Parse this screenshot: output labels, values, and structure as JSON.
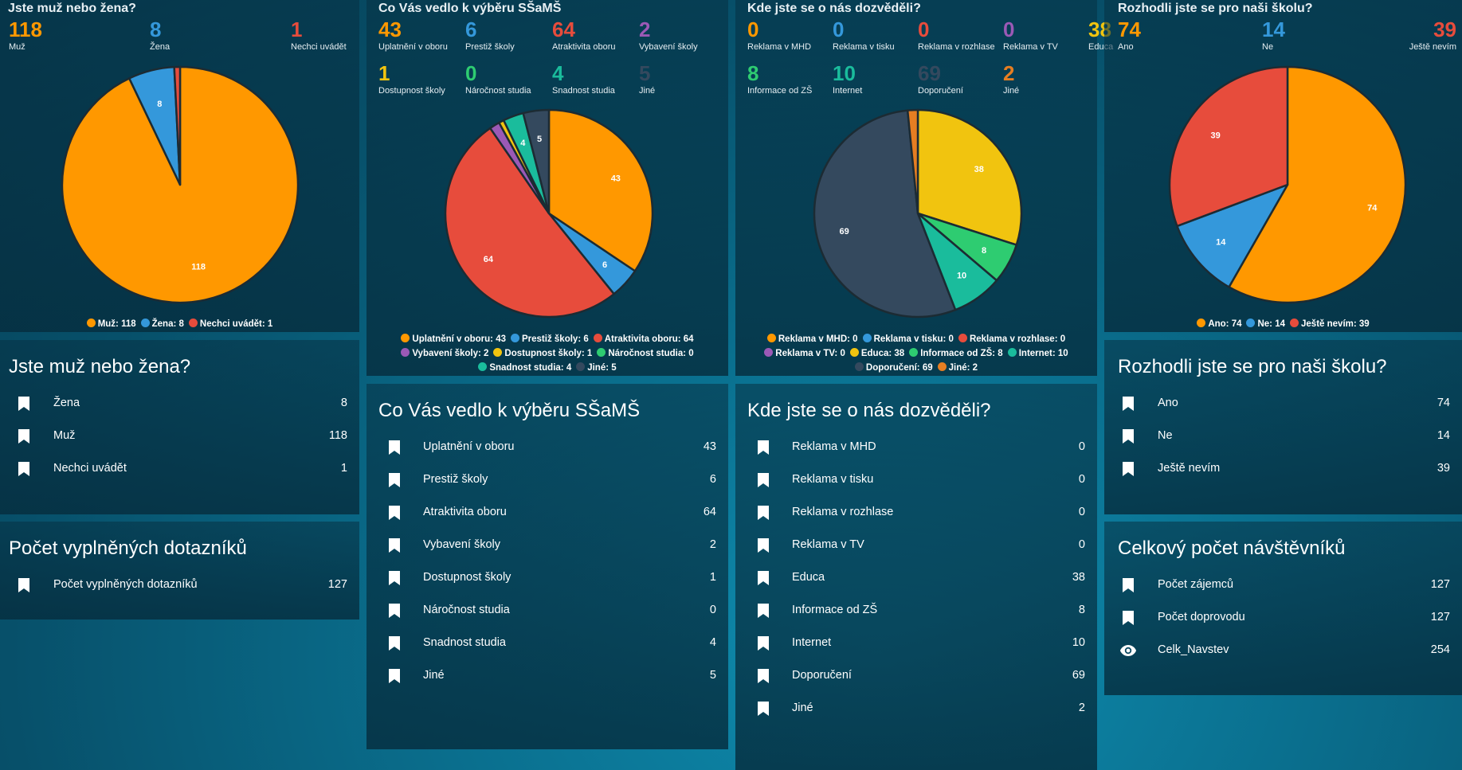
{
  "colors": {
    "orange": "#ff9800",
    "blue": "#3498db",
    "red": "#e74c3c",
    "purple": "#9b59b6",
    "yellow": "#f1c40f",
    "green": "#2ecc71",
    "teal": "#1abc9c",
    "dark": "#34495e",
    "orange2": "#e67e22"
  },
  "gender": {
    "title": "Jste muž nebo žena?",
    "stats": [
      {
        "value": "118",
        "label": "Muž",
        "color": "#ff9800"
      },
      {
        "value": "8",
        "label": "Žena",
        "color": "#3498db"
      },
      {
        "value": "1",
        "label": "Nechci uvádět",
        "color": "#e74c3c"
      }
    ],
    "legend": [
      [
        {
          "text": "Muž: 118",
          "color": "#ff9800"
        },
        {
          "text": "Žena: 8",
          "color": "#3498db"
        },
        {
          "text": "Nechci uvádět: 1",
          "color": "#e74c3c"
        }
      ]
    ]
  },
  "motivation": {
    "title": "Co Vás vedlo k výběru SŠaMŠ",
    "stats": [
      {
        "value": "43",
        "label": "Uplatnění v oboru",
        "color": "#ff9800"
      },
      {
        "value": "6",
        "label": "Prestiž školy",
        "color": "#3498db"
      },
      {
        "value": "64",
        "label": "Atraktivita oboru",
        "color": "#e74c3c"
      },
      {
        "value": "2",
        "label": "Vybavení školy",
        "color": "#9b59b6"
      },
      {
        "value": "1",
        "label": "Dostupnost školy",
        "color": "#f1c40f"
      },
      {
        "value": "0",
        "label": "Náročnost studia",
        "color": "#2ecc71"
      },
      {
        "value": "4",
        "label": "Snadnost studia",
        "color": "#1abc9c"
      },
      {
        "value": "5",
        "label": "Jiné",
        "color": "#34495e"
      }
    ],
    "legend": [
      [
        {
          "text": "Uplatnění v oboru: 43",
          "color": "#ff9800"
        },
        {
          "text": "Prestiž školy: 6",
          "color": "#3498db"
        },
        {
          "text": "Atraktivita oboru: 64",
          "color": "#e74c3c"
        }
      ],
      [
        {
          "text": "Vybavení školy: 2",
          "color": "#9b59b6"
        },
        {
          "text": "Dostupnost školy: 1",
          "color": "#f1c40f"
        },
        {
          "text": "Náročnost studia: 0",
          "color": "#2ecc71"
        }
      ],
      [
        {
          "text": "Snadnost studia: 4",
          "color": "#1abc9c"
        },
        {
          "text": "Jiné: 5",
          "color": "#34495e"
        }
      ]
    ]
  },
  "source": {
    "title": "Kde jste se o nás dozvěděli?",
    "stats": [
      {
        "value": "0",
        "label": "Reklama v MHD",
        "color": "#ff9800"
      },
      {
        "value": "0",
        "label": "Reklama v tisku",
        "color": "#3498db"
      },
      {
        "value": "0",
        "label": "Reklama v rozhlase",
        "color": "#e74c3c"
      },
      {
        "value": "0",
        "label": "Reklama v TV",
        "color": "#9b59b6"
      },
      {
        "value": "38",
        "label": "Educa",
        "color": "#f1c40f"
      },
      {
        "value": "8",
        "label": "Informace od ZŠ",
        "color": "#2ecc71"
      },
      {
        "value": "10",
        "label": "Internet",
        "color": "#1abc9c"
      },
      {
        "value": "69",
        "label": "Doporučení",
        "color": "#34495e"
      },
      {
        "value": "2",
        "label": "Jiné",
        "color": "#e67e22"
      }
    ],
    "legend": [
      [
        {
          "text": "Reklama v MHD: 0",
          "color": "#ff9800"
        },
        {
          "text": "Reklama v tisku: 0",
          "color": "#3498db"
        },
        {
          "text": "Reklama v rozhlase: 0",
          "color": "#e74c3c"
        }
      ],
      [
        {
          "text": "Reklama v TV: 0",
          "color": "#9b59b6"
        },
        {
          "text": "Educa: 38",
          "color": "#f1c40f"
        },
        {
          "text": "Informace od ZŠ: 8",
          "color": "#2ecc71"
        },
        {
          "text": "Internet: 10",
          "color": "#1abc9c"
        }
      ],
      [
        {
          "text": "Doporučení: 69",
          "color": "#34495e"
        },
        {
          "text": "Jiné: 2",
          "color": "#e67e22"
        }
      ]
    ]
  },
  "decision": {
    "title": "Rozhodli jste se pro naši školu?",
    "stats": [
      {
        "value": "74",
        "label": "Ano",
        "color": "#ff9800"
      },
      {
        "value": "14",
        "label": "Ne",
        "color": "#3498db"
      },
      {
        "value": "39",
        "label": "Ještě nevím",
        "color": "#e74c3c"
      }
    ],
    "legend": [
      [
        {
          "text": "Ano: 74",
          "color": "#ff9800"
        },
        {
          "text": "Ne: 14",
          "color": "#3498db"
        },
        {
          "text": "Ještě nevím: 39",
          "color": "#e74c3c"
        }
      ]
    ]
  },
  "chart_data": [
    {
      "type": "pie",
      "title": "Jste muž nebo žena?",
      "labels": [
        "Muž",
        "Žena",
        "Nechci uvádět"
      ],
      "values": [
        118,
        8,
        1
      ],
      "colors": [
        "#ff9800",
        "#3498db",
        "#e74c3c"
      ],
      "legend": "bottom"
    },
    {
      "type": "pie",
      "title": "Co Vás vedlo k výběru SŠaMŠ",
      "labels": [
        "Uplatnění v oboru",
        "Prestiž školy",
        "Atraktivita oboru",
        "Vybavení školy",
        "Dostupnost školy",
        "Náročnost studia",
        "Snadnost studia",
        "Jiné"
      ],
      "values": [
        43,
        6,
        64,
        2,
        1,
        0,
        4,
        5
      ],
      "colors": [
        "#ff9800",
        "#3498db",
        "#e74c3c",
        "#9b59b6",
        "#f1c40f",
        "#2ecc71",
        "#1abc9c",
        "#34495e"
      ],
      "legend": "bottom"
    },
    {
      "type": "pie",
      "title": "Kde jste se o nás dozvěděli?",
      "labels": [
        "Reklama v MHD",
        "Reklama v tisku",
        "Reklama v rozhlase",
        "Reklama v TV",
        "Educa",
        "Informace od ZŠ",
        "Internet",
        "Doporučení",
        "Jiné"
      ],
      "values": [
        0,
        0,
        0,
        0,
        38,
        8,
        10,
        69,
        2
      ],
      "colors": [
        "#ff9800",
        "#3498db",
        "#e74c3c",
        "#9b59b6",
        "#f1c40f",
        "#2ecc71",
        "#1abc9c",
        "#34495e",
        "#e67e22"
      ],
      "legend": "bottom"
    },
    {
      "type": "pie",
      "title": "Rozhodli jste se pro naši školu?",
      "labels": [
        "Ano",
        "Ne",
        "Ještě nevím"
      ],
      "values": [
        74,
        14,
        39
      ],
      "colors": [
        "#ff9800",
        "#3498db",
        "#e74c3c"
      ],
      "legend": "bottom"
    }
  ],
  "lists": {
    "gender": {
      "title": "Jste muž nebo žena?",
      "rows": [
        {
          "label": "Žena",
          "value": "8",
          "icon": "bookmark-icon"
        },
        {
          "label": "Muž",
          "value": "118",
          "icon": "bookmark-icon"
        },
        {
          "label": "Nechci uvádět",
          "value": "1",
          "icon": "bookmark-icon"
        }
      ]
    },
    "count": {
      "title": "Počet vyplněných dotazníků",
      "rows": [
        {
          "label": "Počet vyplněných dotazníků",
          "value": "127",
          "icon": "bookmark-icon"
        }
      ]
    },
    "motivation": {
      "title": "Co Vás vedlo k výběru SŠaMŠ",
      "rows": [
        {
          "label": "Uplatnění v oboru",
          "value": "43",
          "icon": "bookmark-icon"
        },
        {
          "label": "Prestiž školy",
          "value": "6",
          "icon": "bookmark-icon"
        },
        {
          "label": "Atraktivita oboru",
          "value": "64",
          "icon": "bookmark-icon"
        },
        {
          "label": "Vybavení školy",
          "value": "2",
          "icon": "bookmark-icon"
        },
        {
          "label": "Dostupnost školy",
          "value": "1",
          "icon": "bookmark-icon"
        },
        {
          "label": "Náročnost studia",
          "value": "0",
          "icon": "bookmark-icon"
        },
        {
          "label": "Snadnost studia",
          "value": "4",
          "icon": "bookmark-icon"
        },
        {
          "label": "Jiné",
          "value": "5",
          "icon": "bookmark-icon"
        }
      ]
    },
    "source": {
      "title": "Kde jste se o nás dozvěděli?",
      "rows": [
        {
          "label": "Reklama v MHD",
          "value": "0",
          "icon": "bookmark-icon"
        },
        {
          "label": "Reklama v tisku",
          "value": "0",
          "icon": "bookmark-icon"
        },
        {
          "label": "Reklama v rozhlase",
          "value": "0",
          "icon": "bookmark-icon"
        },
        {
          "label": "Reklama v TV",
          "value": "0",
          "icon": "bookmark-icon"
        },
        {
          "label": "Educa",
          "value": "38",
          "icon": "bookmark-icon"
        },
        {
          "label": "Informace od ZŠ",
          "value": "8",
          "icon": "bookmark-icon"
        },
        {
          "label": "Internet",
          "value": "10",
          "icon": "bookmark-icon"
        },
        {
          "label": "Doporučení",
          "value": "69",
          "icon": "bookmark-icon"
        },
        {
          "label": "Jiné",
          "value": "2",
          "icon": "bookmark-icon"
        }
      ]
    },
    "decision": {
      "title": "Rozhodli jste se pro naši školu?",
      "rows": [
        {
          "label": "Ano",
          "value": "74",
          "icon": "bookmark-icon"
        },
        {
          "label": "Ne",
          "value": "14",
          "icon": "bookmark-icon"
        },
        {
          "label": "Ještě nevím",
          "value": "39",
          "icon": "bookmark-icon"
        }
      ]
    },
    "visitors": {
      "title": "Celkový počet návštěvníků",
      "rows": [
        {
          "label": "Počet zájemců",
          "value": "127",
          "icon": "bookmark-icon"
        },
        {
          "label": "Počet doprovodu",
          "value": "127",
          "icon": "bookmark-icon"
        },
        {
          "label": "Celk_Navstev",
          "value": "254",
          "icon": "eye-icon"
        }
      ]
    }
  }
}
